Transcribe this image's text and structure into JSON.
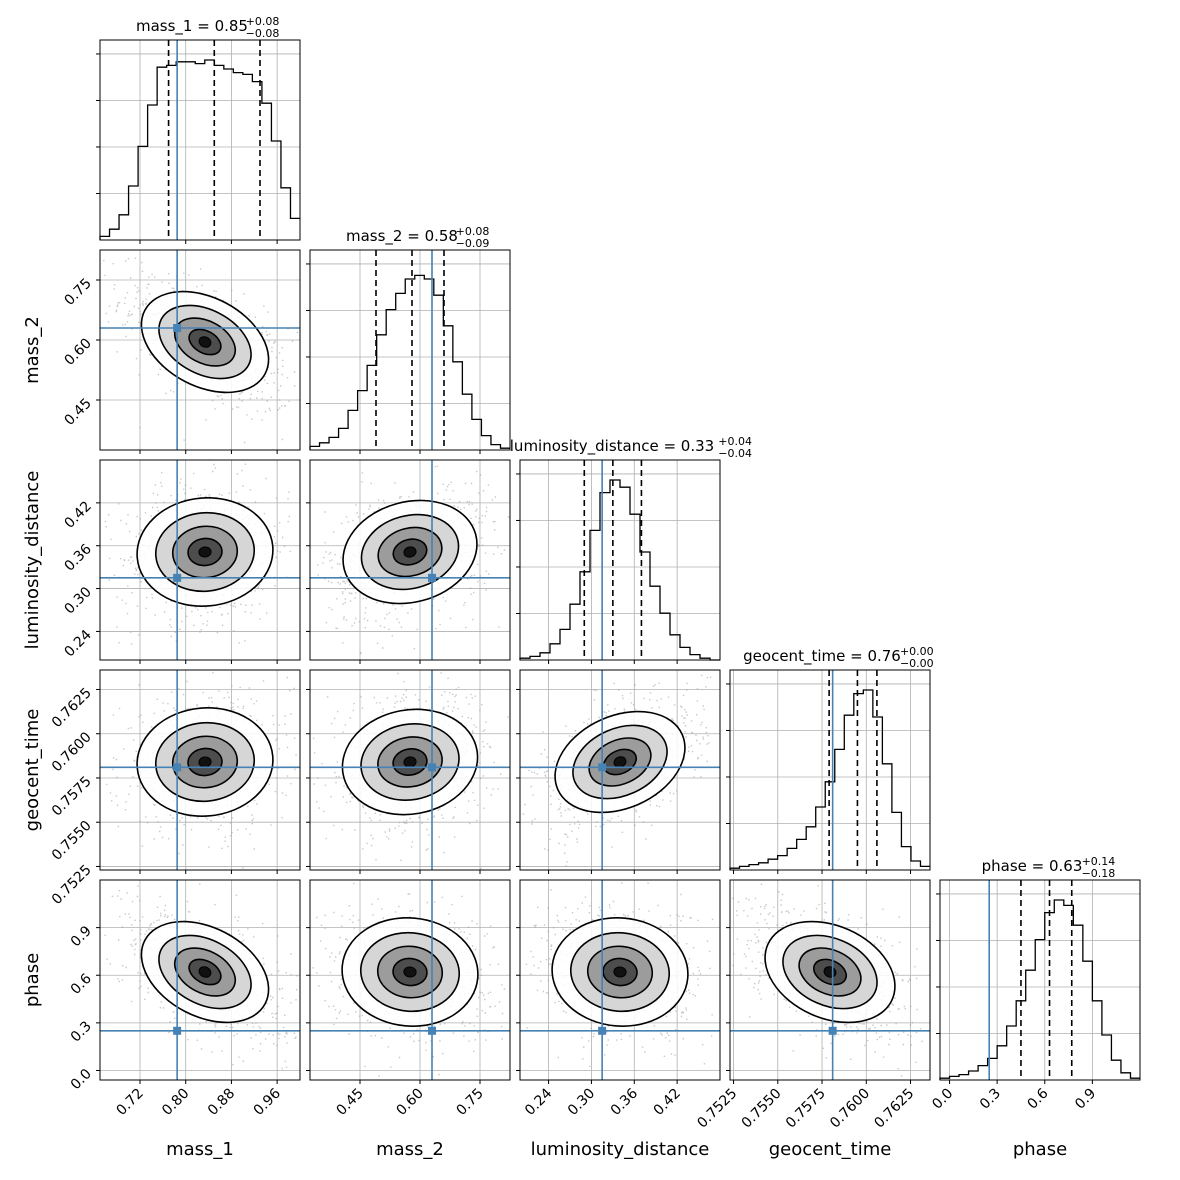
{
  "chart_data": {
    "type": "corner",
    "params": [
      "mass_1",
      "mass_2",
      "luminosity_distance",
      "geocent_time",
      "phase"
    ],
    "ranges": {
      "mass_1": [
        0.65,
        1.0
      ],
      "mass_2": [
        0.325,
        0.825
      ],
      "luminosity_distance": [
        0.2,
        0.48
      ],
      "geocent_time": [
        0.7523,
        0.7636
      ],
      "phase": [
        -0.06,
        1.2
      ]
    },
    "ticks": {
      "mass_1": [
        "0.72",
        "0.80",
        "0.88",
        "0.96"
      ],
      "mass_2": [
        "0.45",
        "0.60",
        "0.75"
      ],
      "luminosity_distance": [
        "0.24",
        "0.30",
        "0.36",
        "0.42"
      ],
      "geocent_time": [
        "0.7525",
        "0.7550",
        "0.7575",
        "0.7600",
        "0.7625"
      ],
      "phase": [
        "0.0",
        "0.3",
        "0.6",
        "0.9"
      ]
    },
    "truths": {
      "mass_1": 0.785,
      "mass_2": 0.63,
      "luminosity_distance": 0.315,
      "geocent_time": 0.7581,
      "phase": 0.25
    },
    "titles": [
      {
        "param": "mass_1",
        "label": "mass_1 = 0.85",
        "plus": "+0.08",
        "minus": "−0.08"
      },
      {
        "param": "mass_2",
        "label": "mass_2 = 0.58",
        "plus": "+0.08",
        "minus": "−0.09"
      },
      {
        "param": "luminosity_distance",
        "label": "luminosity_distance = 0.33",
        "plus": "+0.04",
        "minus": "−0.04"
      },
      {
        "param": "geocent_time",
        "label": "geocent_time = 0.76",
        "plus": "+0.00",
        "minus": "−0.00"
      },
      {
        "param": "phase",
        "label": "phase = 0.63",
        "plus": "+0.14",
        "minus": "−0.18"
      }
    ],
    "quantiles": {
      "mass_1": [
        0.77,
        0.85,
        0.93
      ],
      "mass_2": [
        0.49,
        0.58,
        0.66
      ],
      "luminosity_distance": [
        0.29,
        0.33,
        0.37
      ],
      "geocent_time": [
        0.7579,
        0.7595,
        0.7606
      ],
      "phase": [
        0.45,
        0.63,
        0.77
      ]
    },
    "histograms": {
      "mass_1": [
        0.02,
        0.06,
        0.14,
        0.3,
        0.52,
        0.75,
        0.96,
        0.97,
        0.99,
        0.99,
        0.98,
        1.0,
        0.97,
        0.95,
        0.93,
        0.92,
        0.88,
        0.76,
        0.55,
        0.29,
        0.12
      ],
      "mass_2": [
        0.02,
        0.04,
        0.07,
        0.12,
        0.22,
        0.33,
        0.47,
        0.64,
        0.78,
        0.87,
        0.95,
        0.97,
        0.95,
        0.86,
        0.69,
        0.49,
        0.31,
        0.17,
        0.08,
        0.03,
        0.01
      ],
      "luminosity_distance": [
        0.01,
        0.02,
        0.04,
        0.09,
        0.17,
        0.31,
        0.49,
        0.72,
        0.93,
        1.0,
        0.96,
        0.81,
        0.6,
        0.41,
        0.26,
        0.14,
        0.07,
        0.03,
        0.01,
        0.0
      ],
      "geocent_time": [
        0.01,
        0.02,
        0.03,
        0.04,
        0.06,
        0.08,
        0.12,
        0.17,
        0.24,
        0.35,
        0.49,
        0.67,
        0.86,
        0.98,
        1.0,
        0.85,
        0.59,
        0.32,
        0.13,
        0.05,
        0.02
      ],
      "phase": [
        0.01,
        0.02,
        0.03,
        0.05,
        0.08,
        0.12,
        0.19,
        0.3,
        0.44,
        0.61,
        0.78,
        0.93,
        1.0,
        0.97,
        0.86,
        0.66,
        0.44,
        0.25,
        0.11,
        0.04,
        0.01
      ]
    },
    "correlations": {
      "mass_2|mass_1": -0.6,
      "luminosity_distance|mass_1": 0.1,
      "luminosity_distance|mass_2": 0.3,
      "geocent_time|mass_1": 0.1,
      "geocent_time|mass_2": 0.2,
      "geocent_time|luminosity_distance": 0.5,
      "phase|mass_1": -0.6,
      "phase|mass_2": -0.1,
      "phase|luminosity_distance": -0.1,
      "phase|geocent_time": -0.5
    },
    "colors": {
      "truth": "#4682b4",
      "line": "#000000",
      "grid": "#b0b0b0",
      "scatter": "#9a9a9a"
    },
    "grid": true
  }
}
